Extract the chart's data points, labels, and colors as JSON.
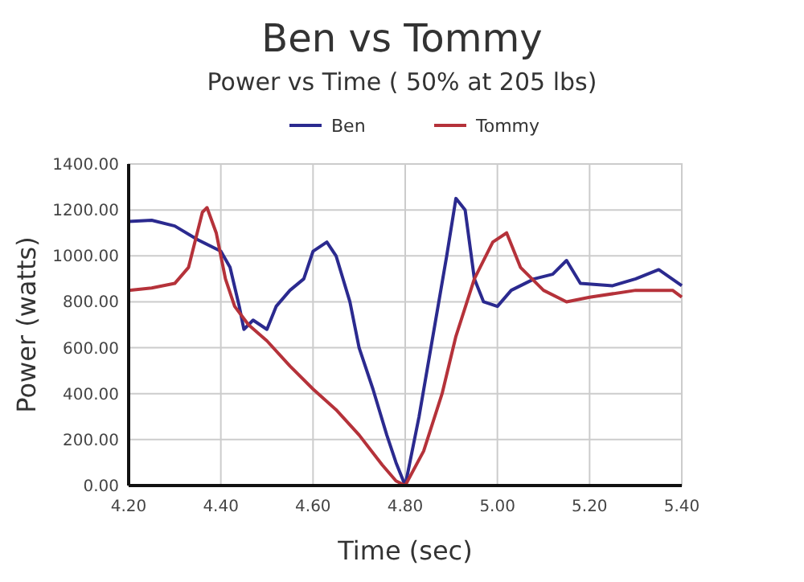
{
  "chart_data": {
    "type": "line",
    "title": "Ben vs Tommy",
    "subtitle": "Power vs Time ( 50% at 205 lbs)",
    "xlabel": "Time (sec)",
    "ylabel": "Power (watts)",
    "xlim": [
      4.2,
      5.4
    ],
    "ylim": [
      0,
      1400
    ],
    "xticks": [
      {
        "value": 4.2,
        "label": "4.20"
      },
      {
        "value": 4.4,
        "label": "4.40"
      },
      {
        "value": 4.6,
        "label": "4.60"
      },
      {
        "value": 4.8,
        "label": "4.80"
      },
      {
        "value": 5.0,
        "label": "5.00"
      },
      {
        "value": 5.2,
        "label": "5.20"
      },
      {
        "value": 5.4,
        "label": "5.40"
      }
    ],
    "yticks": [
      {
        "value": 0,
        "label": "0.00"
      },
      {
        "value": 200,
        "label": "200.00"
      },
      {
        "value": 400,
        "label": "400.00"
      },
      {
        "value": 600,
        "label": "600.00"
      },
      {
        "value": 800,
        "label": "800.00"
      },
      {
        "value": 1000,
        "label": "1000.00"
      },
      {
        "value": 1200,
        "label": "1200.00"
      },
      {
        "value": 1400,
        "label": "1400.00"
      }
    ],
    "grid": true,
    "legend": "top",
    "line_style": "solid",
    "series": [
      {
        "name": "Ben",
        "color": "#2b2a8f",
        "x": [
          4.2,
          4.25,
          4.3,
          4.35,
          4.4,
          4.42,
          4.44,
          4.45,
          4.47,
          4.5,
          4.52,
          4.55,
          4.58,
          4.6,
          4.63,
          4.65,
          4.68,
          4.7,
          4.73,
          4.76,
          4.78,
          4.8,
          4.83,
          4.86,
          4.89,
          4.91,
          4.93,
          4.95,
          4.97,
          5.0,
          5.03,
          5.08,
          5.12,
          5.15,
          5.18,
          5.25,
          5.3,
          5.35,
          5.4
        ],
        "values": [
          1150,
          1155,
          1130,
          1070,
          1020,
          950,
          780,
          680,
          720,
          680,
          780,
          850,
          900,
          1020,
          1060,
          1000,
          800,
          600,
          420,
          220,
          100,
          0,
          300,
          650,
          1000,
          1250,
          1200,
          900,
          800,
          780,
          850,
          900,
          920,
          980,
          880,
          870,
          900,
          940,
          870
        ]
      },
      {
        "name": "Tommy",
        "color": "#b5323a",
        "x": [
          4.2,
          4.25,
          4.3,
          4.33,
          4.36,
          4.37,
          4.39,
          4.41,
          4.43,
          4.46,
          4.5,
          4.55,
          4.6,
          4.65,
          4.7,
          4.75,
          4.78,
          4.8,
          4.84,
          4.88,
          4.91,
          4.95,
          4.99,
          5.02,
          5.05,
          5.1,
          5.15,
          5.2,
          5.3,
          5.38,
          5.4
        ],
        "values": [
          850,
          860,
          880,
          950,
          1190,
          1210,
          1100,
          900,
          780,
          700,
          630,
          520,
          420,
          330,
          220,
          90,
          20,
          0,
          150,
          400,
          650,
          900,
          1060,
          1100,
          950,
          850,
          800,
          820,
          850,
          850,
          820
        ]
      }
    ]
  }
}
